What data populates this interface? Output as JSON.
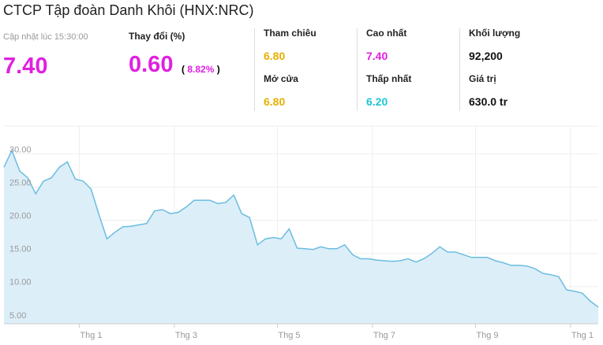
{
  "header": {
    "title": "CTCP Tập đoàn Danh Khôi (HNX:NRC)",
    "updated": "Cập nhật lúc 15:30:00",
    "price": "7.40",
    "change_label": "Thay đổi (%)",
    "change": "0.60",
    "change_open": "(",
    "change_pct": "8.82%",
    "change_close": ")"
  },
  "stats": [
    {
      "label": "Tham chiêu",
      "value": "6.80",
      "color": "#e6b000"
    },
    {
      "label": "Mở cửa",
      "value": "6.80",
      "color": "#e6b000"
    },
    {
      "label": "Cao nhất",
      "value": "7.40",
      "color": "#e020e0"
    },
    {
      "label": "Thấp nhất",
      "value": "6.20",
      "color": "#1fc6d6"
    },
    {
      "label": "Khối lượng",
      "value": "92,200",
      "color": "#111111"
    },
    {
      "label": "Giá trị",
      "value": "630.0 tr",
      "color": "#111111"
    }
  ],
  "chart_data": {
    "type": "area",
    "grid": true,
    "categories": [
      null,
      null,
      null,
      null,
      null,
      null,
      null,
      null,
      null,
      null,
      null,
      "Thg 1",
      null,
      null,
      null,
      null,
      null,
      null,
      null,
      null,
      null,
      null,
      null,
      "Thg 3",
      null,
      null,
      null,
      null,
      null,
      null,
      null,
      null,
      null,
      null,
      null,
      null,
      "Thg 5",
      null,
      null,
      null,
      null,
      null,
      null,
      null,
      null,
      null,
      null,
      null,
      "Thg 7",
      null,
      null,
      null,
      null,
      null,
      null,
      null,
      null,
      null,
      null,
      null,
      null,
      "Thg 9",
      null,
      null,
      null,
      null,
      null,
      null,
      null,
      null,
      null,
      null,
      null,
      "Thg 1",
      null,
      null
    ],
    "series": [
      {
        "color": "#6bbde0",
        "values": [
          28.0,
          30.5,
          27.4,
          26.4,
          24.0,
          25.9,
          26.4,
          28.0,
          28.8,
          26.2,
          25.9,
          24.7,
          20.8,
          17.2,
          18.2,
          19.0,
          19.1,
          19.3,
          19.5,
          21.4,
          21.6,
          21.0,
          21.2,
          22.0,
          23.0,
          23.0,
          23.0,
          22.5,
          22.7,
          23.8,
          21.0,
          20.4,
          16.3,
          17.2,
          17.4,
          17.2,
          18.7,
          15.8,
          15.7,
          15.6,
          16.0,
          15.7,
          15.7,
          16.3,
          14.8,
          14.2,
          14.2,
          14.0,
          13.9,
          13.8,
          13.9,
          14.2,
          13.7,
          14.2,
          15.0,
          16.0,
          15.2,
          15.2,
          14.8,
          14.4,
          14.4,
          14.4,
          13.9,
          13.6,
          13.2,
          13.2,
          13.1,
          12.7,
          12.0,
          11.8,
          11.5,
          9.5,
          9.3,
          9.0,
          7.8,
          6.9
        ]
      }
    ],
    "ylim": [
      4.4,
      34.2
    ],
    "yticks": [
      {
        "value": 5,
        "label": "5.00"
      },
      {
        "value": 10,
        "label": "10.00"
      },
      {
        "value": 15,
        "label": "15.00"
      },
      {
        "value": 20,
        "label": "20.00"
      },
      {
        "value": 25,
        "label": "25.00"
      },
      {
        "value": 30,
        "label": "30.00"
      }
    ]
  }
}
